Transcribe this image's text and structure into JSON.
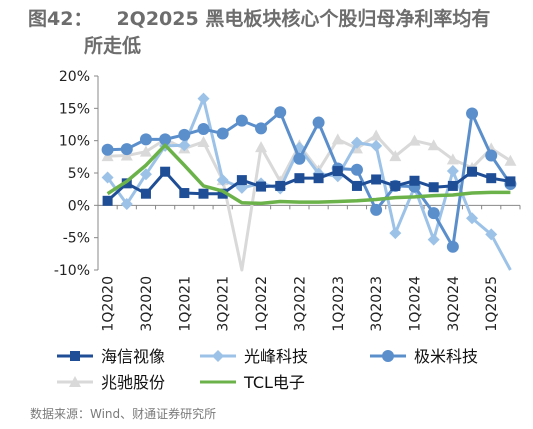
{
  "figure": {
    "label": "图42：",
    "title_line1": "2Q2025 黑电板块核心个股归母净利率均有",
    "title_line2": "所走低",
    "source": "数据来源：Wind、财通证券研究所"
  },
  "chart_data": {
    "type": "line",
    "title": "2Q2025 黑电板块核心个股归母净利率均有所走低",
    "xlabel": "",
    "ylabel": "",
    "ylim": [
      -10,
      20
    ],
    "y_ticks": [
      "20%",
      "15%",
      "10%",
      "5%",
      "0%",
      "-5%",
      "-10%"
    ],
    "y_tick_values": [
      20,
      15,
      10,
      5,
      0,
      -5,
      -10
    ],
    "x": [
      "1Q2020",
      "2Q2020",
      "3Q2020",
      "4Q2020",
      "1Q2021",
      "2Q2021",
      "3Q2021",
      "4Q2021",
      "1Q2022",
      "2Q2022",
      "3Q2022",
      "4Q2022",
      "1Q2023",
      "2Q2023",
      "3Q2023",
      "4Q2023",
      "1Q2024",
      "2Q2024",
      "3Q2024",
      "4Q2024",
      "1Q2025",
      "2Q2025"
    ],
    "x_tick_labels": [
      "1Q2020",
      "3Q2020",
      "1Q2021",
      "3Q2021",
      "1Q2022",
      "3Q2022",
      "1Q2023",
      "3Q2023",
      "1Q2024",
      "3Q2024",
      "1Q2025"
    ],
    "legend_position": "bottom",
    "series": [
      {
        "name": "海信视像",
        "color": "#1f4e96",
        "marker": "square",
        "values": [
          0.7,
          3.4,
          1.8,
          5.2,
          1.9,
          1.8,
          1.8,
          3.9,
          2.9,
          3.0,
          4.2,
          4.2,
          5.3,
          3.0,
          4.0,
          3.0,
          3.8,
          2.8,
          3.0,
          5.2,
          4.2,
          3.7
        ]
      },
      {
        "name": "光峰科技",
        "color": "#9cc2e8",
        "marker": "diamond",
        "values": [
          4.3,
          0.2,
          4.8,
          9.2,
          9.3,
          16.5,
          3.9,
          2.7,
          3.4,
          2.6,
          8.9,
          4.9,
          4.5,
          9.7,
          9.2,
          -4.3,
          2.8,
          -5.3,
          5.3,
          -2.0,
          -4.5,
          -10.0
        ]
      },
      {
        "name": "极米科技",
        "color": "#5b8fcc",
        "marker": "circle",
        "values": [
          8.6,
          8.7,
          10.2,
          10.2,
          10.9,
          11.8,
          11.1,
          13.1,
          11.9,
          14.4,
          7.2,
          12.8,
          5.7,
          5.5,
          -0.7,
          3.0,
          2.9,
          -1.2,
          -6.4,
          14.2,
          7.7,
          3.3
        ]
      },
      {
        "name": "兆驰股份",
        "color": "#d9d9d9",
        "marker": "triangle",
        "values": [
          7.6,
          7.7,
          8.3,
          10.2,
          8.8,
          9.8,
          3.9,
          -10.0,
          9.0,
          3.7,
          9.3,
          5.4,
          10.2,
          8.8,
          10.8,
          7.6,
          10.0,
          9.3,
          7.1,
          5.8,
          8.8,
          6.9
        ]
      },
      {
        "name": "TCL电子",
        "color": "#6cb24a",
        "marker": "none",
        "values": [
          1.8,
          3.7,
          6.2,
          9.3,
          6.2,
          3.0,
          2.2,
          0.4,
          0.3,
          0.6,
          0.5,
          0.5,
          0.6,
          0.7,
          0.9,
          1.2,
          1.3,
          1.5,
          1.6,
          1.9,
          2.0,
          2.0
        ]
      }
    ]
  }
}
